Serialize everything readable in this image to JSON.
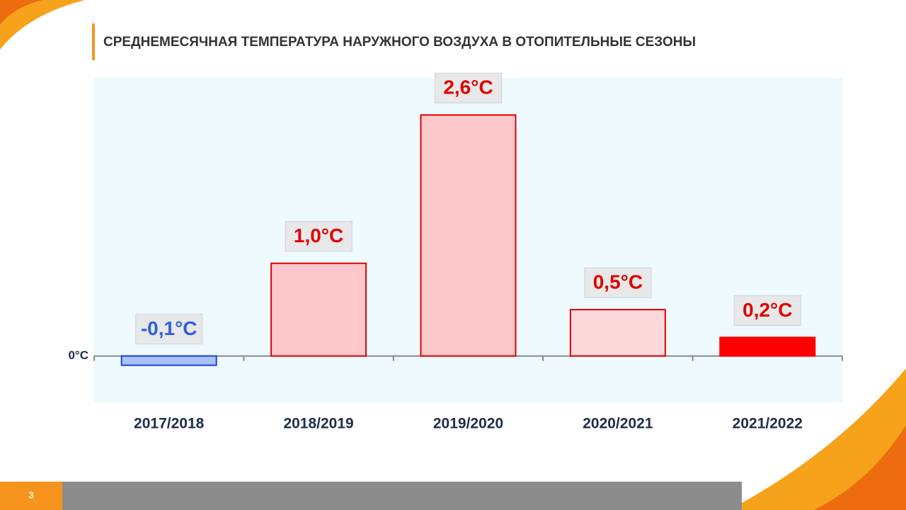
{
  "chart_data": {
    "type": "bar",
    "title": "СРЕДНЕМЕСЯЧНАЯ ТЕМПЕРАТУРА НАРУЖНОГО ВОЗДУХА В ОТОПИТЕЛЬНЫЕ СЕЗОНЫ",
    "categories": [
      "2017/2018",
      "2018/2019",
      "2019/2020",
      "2020/2021",
      "2021/2022"
    ],
    "values": [
      -0.1,
      1.0,
      2.6,
      0.5,
      0.2
    ],
    "value_labels": [
      "-0,1°C",
      "1,0°C",
      "2,6°C",
      "0,5°C",
      "0,2°C"
    ],
    "colors": [
      "#a9c4f5",
      "#fcc8cc",
      "#fcc8cc",
      "#fdd9dc",
      "#ff0000"
    ],
    "edge_colors": [
      "#1f3fe0",
      "#e00000",
      "#e00000",
      "#e00000",
      "#ff0000"
    ],
    "label_colors": [
      "#2f5fe0",
      "#e00000",
      "#e00000",
      "#e00000",
      "#e00000"
    ],
    "ylim": [
      -0.5,
      3.0
    ],
    "yticks": [
      {
        "value": 0,
        "label": "0°C"
      }
    ],
    "grid": false
  },
  "page_number": "3"
}
